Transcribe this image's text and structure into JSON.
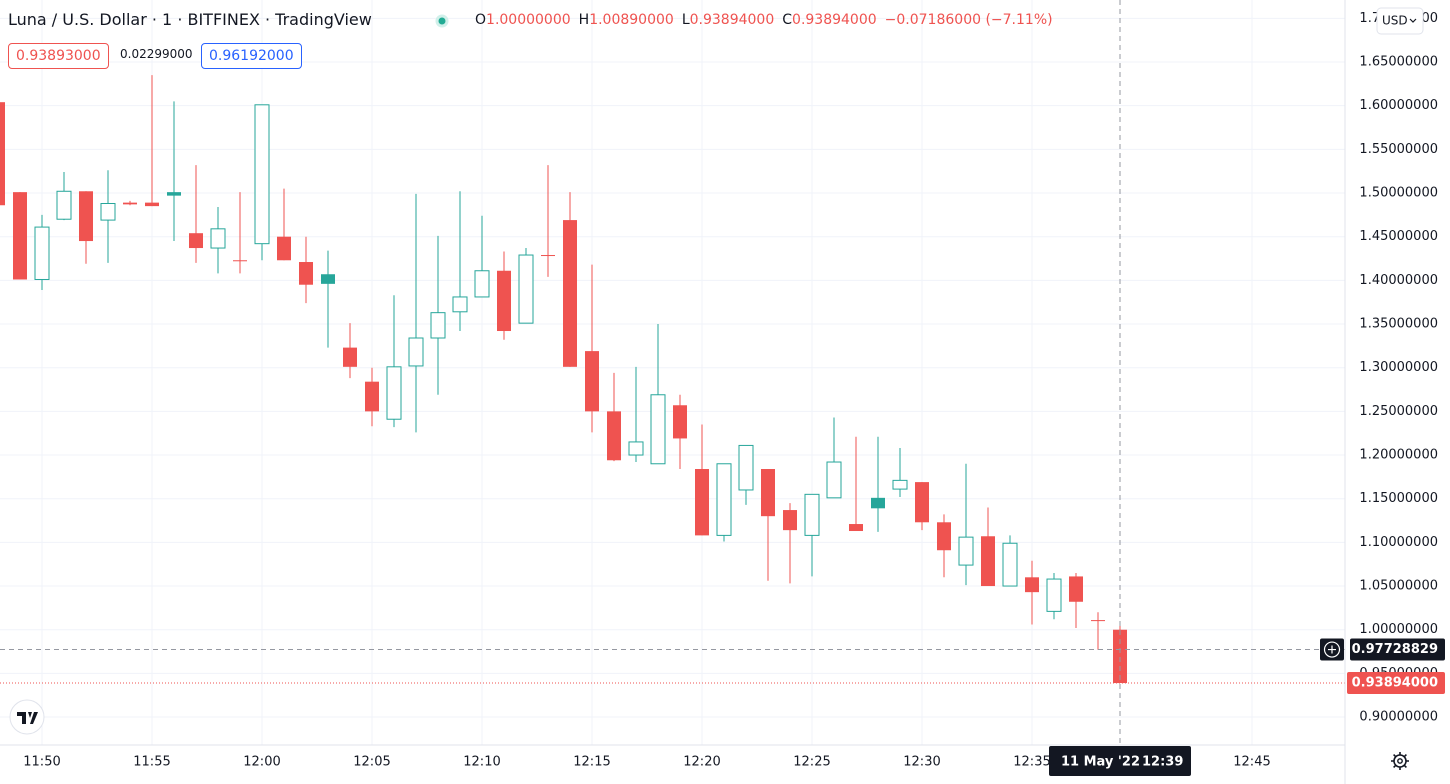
{
  "header": {
    "symbol": "Luna / U.S. Dollar · 1 · BITFINEX · TradingView",
    "ohlc": [
      {
        "key": "O",
        "value": "1.00000000"
      },
      {
        "key": "H",
        "value": "1.00890000"
      },
      {
        "key": "L",
        "value": "0.93894000"
      },
      {
        "key": "C",
        "value": "0.93894000"
      }
    ],
    "change": "−0.07186000 (−7.11%)",
    "bid": "0.93893000",
    "spread": "0.02299000",
    "ask": "0.96192000",
    "currency": "USD"
  },
  "chart_data": {
    "type": "candlestick",
    "categories": [
      null,
      null,
      "11:50",
      null,
      null,
      null,
      null,
      "11:55",
      null,
      null,
      null,
      null,
      "12:00",
      null,
      null,
      null,
      null,
      "12:05",
      null,
      null,
      null,
      null,
      "12:10",
      null,
      null,
      null,
      null,
      "12:15",
      null,
      null,
      null,
      null,
      "12:20",
      null,
      null,
      null,
      null,
      "12:25",
      null,
      null,
      null,
      null,
      "12:30",
      null,
      null,
      null,
      null,
      "12:35",
      null,
      null,
      null,
      null,
      null,
      null,
      null,
      null,
      null,
      "12:45"
    ],
    "open": [
      1.604,
      1.501,
      1.401,
      1.47,
      1.502,
      1.469,
      1.489,
      1.489,
      1.501,
      1.454,
      1.437,
      1.423,
      1.442,
      1.45,
      1.421,
      1.407,
      1.323,
      1.284,
      1.241,
      1.302,
      1.334,
      1.364,
      1.381,
      1.411,
      1.351,
      1.429,
      1.469,
      1.319,
      1.25,
      1.2,
      1.19,
      1.257,
      1.184,
      1.108,
      1.16,
      1.184,
      1.137,
      1.108,
      1.151,
      1.121,
      1.151,
      1.161,
      1.169,
      1.123,
      1.074,
      1.107,
      1.05,
      1.06,
      1.021,
      1.061,
      1.011,
      1.0,
      null,
      null,
      null,
      null,
      null,
      null
    ],
    "high": [
      1.604,
      1.501,
      1.475,
      1.524,
      1.502,
      1.526,
      1.491,
      1.635,
      1.605,
      1.532,
      1.484,
      1.501,
      1.601,
      1.505,
      1.45,
      1.434,
      1.351,
      1.3,
      1.383,
      1.499,
      1.451,
      1.502,
      1.474,
      1.433,
      1.437,
      1.532,
      1.501,
      1.418,
      1.294,
      1.301,
      1.35,
      1.269,
      1.235,
      1.19,
      1.211,
      1.184,
      1.145,
      1.155,
      1.243,
      1.221,
      1.221,
      1.208,
      1.169,
      1.132,
      1.19,
      1.14,
      1.108,
      1.079,
      1.065,
      1.065,
      1.02,
      1.0089,
      null,
      null,
      null,
      null,
      null,
      null
    ],
    "low": [
      1.486,
      1.401,
      1.389,
      1.469,
      1.419,
      1.42,
      1.486,
      1.485,
      1.445,
      1.42,
      1.408,
      1.408,
      1.423,
      1.423,
      1.374,
      1.323,
      1.288,
      1.233,
      1.232,
      1.226,
      1.269,
      1.342,
      1.381,
      1.332,
      1.351,
      1.404,
      1.301,
      1.226,
      1.193,
      1.192,
      1.19,
      1.184,
      1.108,
      1.101,
      1.143,
      1.056,
      1.053,
      1.061,
      1.151,
      1.113,
      1.112,
      1.152,
      1.114,
      1.06,
      1.051,
      1.05,
      1.05,
      1.006,
      1.012,
      1.002,
      0.977,
      0.93894,
      null,
      null,
      null,
      null,
      null,
      null
    ],
    "close": [
      1.486,
      1.401,
      1.461,
      1.502,
      1.445,
      1.488,
      1.487,
      1.485,
      1.497,
      1.437,
      1.459,
      1.422,
      1.601,
      1.423,
      1.395,
      1.396,
      1.301,
      1.25,
      1.301,
      1.334,
      1.363,
      1.381,
      1.411,
      1.342,
      1.429,
      1.428,
      1.301,
      1.25,
      1.194,
      1.215,
      1.269,
      1.219,
      1.108,
      1.19,
      1.211,
      1.13,
      1.114,
      1.155,
      1.192,
      1.113,
      1.139,
      1.171,
      1.123,
      1.091,
      1.106,
      1.05,
      1.099,
      1.043,
      1.058,
      1.032,
      1.01,
      0.93894,
      null,
      null,
      null,
      null,
      null,
      null
    ],
    "up_color": "#26a69a",
    "down_color": "#ef5350",
    "candle_style": "hollow",
    "ylim": [
      0.868,
      1.721
    ],
    "yticks": [
      {
        "value": 0.9,
        "label": "0.90000000"
      },
      {
        "value": 0.95,
        "label": "0.95000000"
      },
      {
        "value": 1.0,
        "label": "1.00000000"
      },
      {
        "value": 1.05,
        "label": "1.05000000"
      },
      {
        "value": 1.1,
        "label": "1.10000000"
      },
      {
        "value": 1.15,
        "label": "1.15000000"
      },
      {
        "value": 1.2,
        "label": "1.20000000"
      },
      {
        "value": 1.25,
        "label": "1.25000000"
      },
      {
        "value": 1.3,
        "label": "1.30000000"
      },
      {
        "value": 1.35,
        "label": "1.35000000"
      },
      {
        "value": 1.4,
        "label": "1.40000000"
      },
      {
        "value": 1.45,
        "label": "1.45000000"
      },
      {
        "value": 1.5,
        "label": "1.50000000"
      },
      {
        "value": 1.55,
        "label": "1.55000000"
      },
      {
        "value": 1.6,
        "label": "1.60000000"
      },
      {
        "value": 1.65,
        "label": "1.65000000"
      },
      {
        "value": 1.7,
        "label": "1.70000000"
      }
    ],
    "grid": true,
    "crosshair": {
      "date": "11 May '22",
      "time": "12:39",
      "price": 0.97728829
    },
    "last_price": {
      "value": 0.93894,
      "label": "0.93894000"
    }
  }
}
